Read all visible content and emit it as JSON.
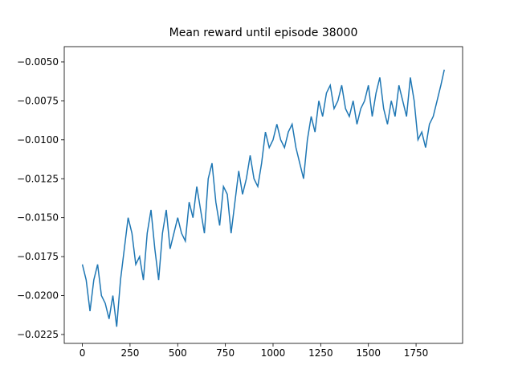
{
  "chart_data": {
    "type": "line",
    "title": "Mean reward until episode 38000",
    "x": [
      0,
      20,
      40,
      60,
      80,
      100,
      120,
      140,
      160,
      180,
      200,
      220,
      240,
      260,
      280,
      300,
      320,
      340,
      360,
      380,
      400,
      420,
      440,
      460,
      480,
      500,
      520,
      540,
      560,
      580,
      600,
      620,
      640,
      660,
      680,
      700,
      720,
      740,
      760,
      780,
      800,
      820,
      840,
      860,
      880,
      900,
      920,
      940,
      960,
      980,
      1000,
      1020,
      1040,
      1060,
      1080,
      1100,
      1120,
      1140,
      1160,
      1180,
      1200,
      1220,
      1240,
      1260,
      1280,
      1300,
      1320,
      1340,
      1360,
      1380,
      1400,
      1420,
      1440,
      1460,
      1480,
      1500,
      1520,
      1540,
      1560,
      1580,
      1600,
      1620,
      1640,
      1660,
      1680,
      1700,
      1720,
      1740,
      1760,
      1780,
      1800,
      1820,
      1840,
      1860,
      1880,
      1898
    ],
    "series": [
      {
        "color": "#1f77b4",
        "values": [
          -0.018,
          -0.019,
          -0.021,
          -0.019,
          -0.018,
          -0.02,
          -0.0205,
          -0.0215,
          -0.02,
          -0.022,
          -0.019,
          -0.017,
          -0.015,
          -0.016,
          -0.018,
          -0.0175,
          -0.019,
          -0.016,
          -0.0145,
          -0.017,
          -0.019,
          -0.016,
          -0.0145,
          -0.017,
          -0.016,
          -0.015,
          -0.016,
          -0.0165,
          -0.014,
          -0.015,
          -0.013,
          -0.0145,
          -0.016,
          -0.0125,
          -0.0115,
          -0.014,
          -0.0155,
          -0.013,
          -0.0135,
          -0.016,
          -0.014,
          -0.012,
          -0.0135,
          -0.0125,
          -0.011,
          -0.0125,
          -0.013,
          -0.0115,
          -0.0095,
          -0.0105,
          -0.01,
          -0.009,
          -0.01,
          -0.0105,
          -0.0095,
          -0.009,
          -0.0105,
          -0.0115,
          -0.0125,
          -0.01,
          -0.0085,
          -0.0095,
          -0.0075,
          -0.0085,
          -0.007,
          -0.0065,
          -0.008,
          -0.0075,
          -0.0065,
          -0.008,
          -0.0085,
          -0.0075,
          -0.009,
          -0.008,
          -0.0075,
          -0.0065,
          -0.0085,
          -0.007,
          -0.006,
          -0.008,
          -0.009,
          -0.0075,
          -0.0085,
          -0.0065,
          -0.0075,
          -0.0085,
          -0.006,
          -0.0075,
          -0.01,
          -0.0095,
          -0.0105,
          -0.009,
          -0.0085,
          -0.0075,
          -0.0065,
          -0.0055
        ]
      }
    ],
    "xlim": [
      -95,
      1994
    ],
    "xticks": [
      0,
      250,
      500,
      750,
      1000,
      1250,
      1500,
      1750
    ],
    "ylim": [
      -0.02307,
      -0.00402
    ],
    "yticks": [
      {
        "value": -0.0225,
        "label": "−0.0225"
      },
      {
        "value": -0.02,
        "label": "−0.0200"
      },
      {
        "value": -0.0175,
        "label": "−0.0175"
      },
      {
        "value": -0.015,
        "label": "−0.0150"
      },
      {
        "value": -0.0125,
        "label": "−0.0125"
      },
      {
        "value": -0.01,
        "label": "−0.0100"
      },
      {
        "value": -0.0075,
        "label": "−0.0075"
      },
      {
        "value": -0.005,
        "label": "−0.0050"
      }
    ]
  }
}
